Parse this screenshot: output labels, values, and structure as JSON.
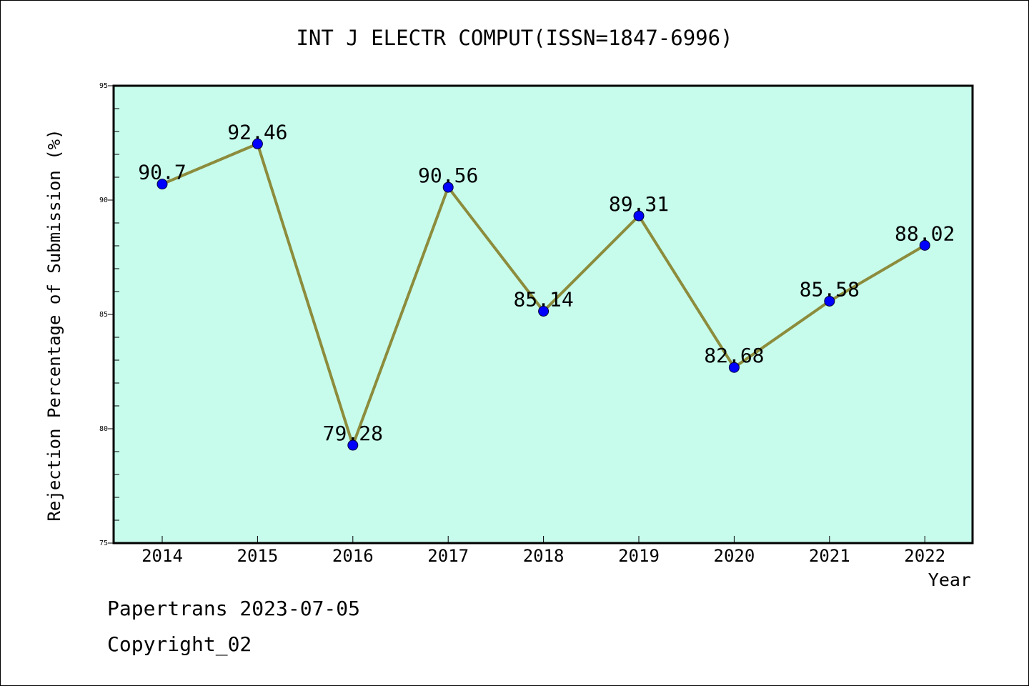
{
  "chart_data": {
    "type": "line",
    "title": "INT J ELECTR COMPUT(ISSN=1847-6996)",
    "xlabel": "Year",
    "ylabel": "Rejection Percentage of Submission (%)",
    "categories": [
      "2014",
      "2015",
      "2016",
      "2017",
      "2018",
      "2019",
      "2020",
      "2021",
      "2022"
    ],
    "series": [
      {
        "values": [
          90.7,
          92.46,
          79.28,
          90.56,
          85.14,
          89.31,
          82.68,
          85.58,
          88.02
        ]
      }
    ],
    "data_labels": [
      "90.7",
      "92.46",
      "79.28",
      "90.56",
      "85.14",
      "89.31",
      "82.68",
      "85.58",
      "88.02"
    ],
    "ylim": [
      75,
      95
    ],
    "yticks": [
      "75",
      "80",
      "85",
      "90",
      "95"
    ],
    "grid": false,
    "legend": "none",
    "colors": {
      "plot_background": "#c7fcec",
      "line": "#8c8c3c",
      "marker": "#0000ff"
    }
  },
  "footer": {
    "source": "Papertrans 2023-07-05",
    "copyright": "Copyright_02"
  }
}
